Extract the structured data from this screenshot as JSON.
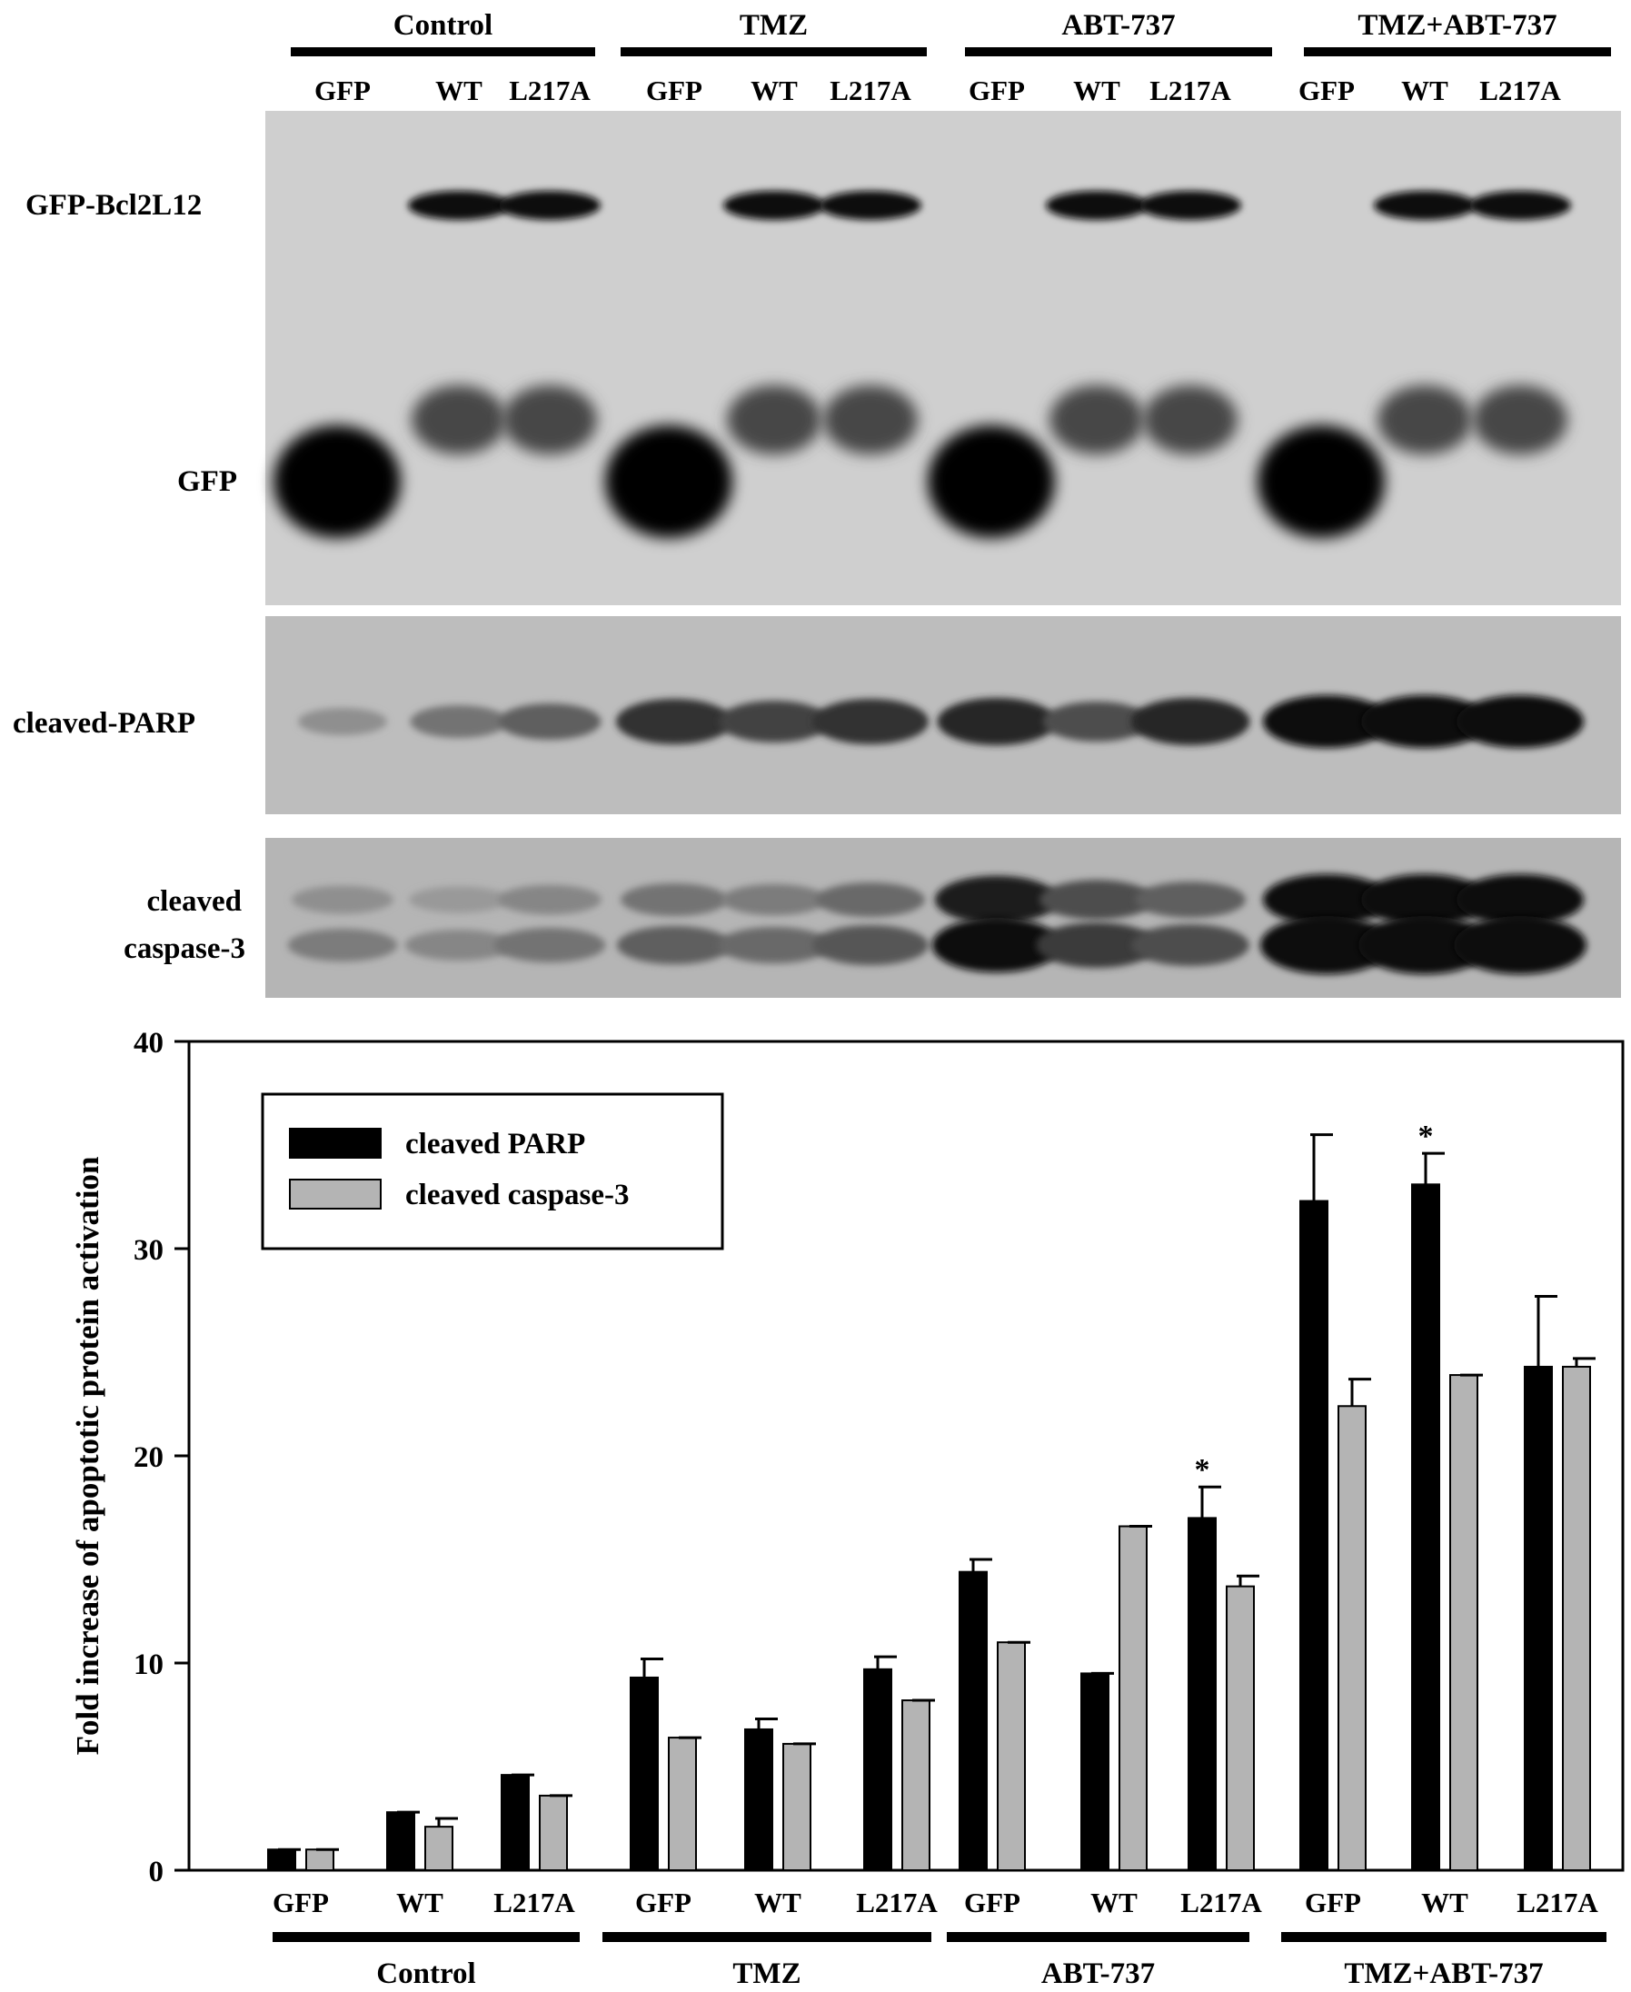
{
  "blot": {
    "groups": [
      "Control",
      "TMZ",
      "ABT-737",
      "TMZ+ABT-737"
    ],
    "lanes": [
      "GFP",
      "WT",
      "L217A"
    ],
    "row_labels": {
      "gfp_bcl2l12": "GFP-Bcl2L12",
      "gfp": "GFP",
      "parp": "cleaved-PARP",
      "casp_line1": "cleaved",
      "casp_line2": "caspase-3"
    },
    "band_intensity": {
      "gfp_bcl2l12": [
        0,
        1,
        1,
        0,
        1,
        1,
        0,
        1,
        1,
        0,
        1,
        1
      ],
      "gfp": [
        1,
        0,
        0,
        1,
        0,
        0,
        1,
        0,
        0,
        1,
        0,
        0
      ],
      "parp": [
        0.3,
        0.45,
        0.55,
        0.8,
        0.7,
        0.8,
        0.85,
        0.65,
        0.85,
        1,
        1,
        1
      ],
      "caspase3": [
        0.3,
        0.25,
        0.35,
        0.45,
        0.4,
        0.5,
        0.9,
        0.65,
        0.55,
        1,
        1,
        1
      ]
    }
  },
  "chart_data": {
    "type": "bar",
    "groups": [
      "Control",
      "TMZ",
      "ABT-737",
      "TMZ+ABT-737"
    ],
    "categories": [
      "GFP",
      "WT",
      "L217A",
      "GFP",
      "WT",
      "L217A",
      "GFP",
      "WT",
      "L217A",
      "GFP",
      "WT",
      "L217A"
    ],
    "series": [
      {
        "name": "cleaved PARP",
        "color": "#000000",
        "values": [
          1.0,
          2.8,
          4.6,
          9.3,
          6.8,
          9.7,
          14.4,
          9.5,
          17.0,
          32.3,
          33.1,
          24.3
        ],
        "errors": [
          0.0,
          0.0,
          0.0,
          0.9,
          0.5,
          0.6,
          0.6,
          0.0,
          1.5,
          3.2,
          1.5,
          3.4
        ]
      },
      {
        "name": "cleaved caspase-3",
        "color": "#b4b4b4",
        "values": [
          1.0,
          2.1,
          3.6,
          6.4,
          6.1,
          8.2,
          11.0,
          16.6,
          13.7,
          22.4,
          23.9,
          24.3
        ],
        "errors": [
          0.0,
          0.4,
          0.0,
          0.0,
          0.0,
          0.0,
          0.0,
          0.0,
          0.5,
          1.3,
          0.0,
          0.4
        ]
      }
    ],
    "significance": [
      {
        "index": 8,
        "series": 0,
        "label": "*"
      },
      {
        "index": 10,
        "series": 0,
        "label": "*"
      }
    ],
    "ylabel": "Fold increase of apoptotic protein activation",
    "ylim": [
      0,
      40
    ],
    "yticks": [
      "0",
      "10",
      "20",
      "30",
      "40"
    ],
    "legend_position": "top-left"
  }
}
